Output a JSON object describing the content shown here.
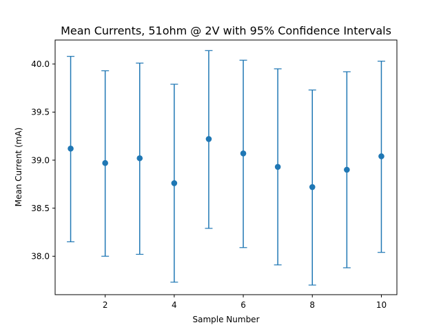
{
  "chart_data": {
    "type": "errorbar",
    "title": "Mean Currents, 51ohm @ 2V with 95% Confidence Intervals",
    "xlabel": "Sample Number",
    "ylabel": "Mean Current (mA)",
    "xlim": [
      0.55,
      10.45
    ],
    "ylim": [
      37.6,
      40.25
    ],
    "xticks": [
      2,
      4,
      6,
      8,
      10
    ],
    "xtick_labels": [
      "2",
      "4",
      "6",
      "8",
      "10"
    ],
    "yticks": [
      38.0,
      38.5,
      39.0,
      39.5,
      40.0
    ],
    "ytick_labels": [
      "38.0",
      "38.5",
      "39.0",
      "39.5",
      "40.0"
    ],
    "grid": false,
    "color": "#1f77b4",
    "series": [
      {
        "name": "Mean Current",
        "x": [
          1,
          2,
          3,
          4,
          5,
          6,
          7,
          8,
          9,
          10
        ],
        "y": [
          39.12,
          38.97,
          39.02,
          38.76,
          39.22,
          39.07,
          38.93,
          38.72,
          38.9,
          39.04
        ],
        "lower": [
          38.15,
          38.0,
          38.02,
          37.73,
          38.29,
          38.09,
          37.91,
          37.7,
          37.88,
          38.04
        ],
        "upper": [
          40.08,
          39.93,
          40.01,
          39.79,
          40.14,
          40.04,
          39.95,
          39.73,
          39.92,
          40.03
        ]
      }
    ]
  }
}
